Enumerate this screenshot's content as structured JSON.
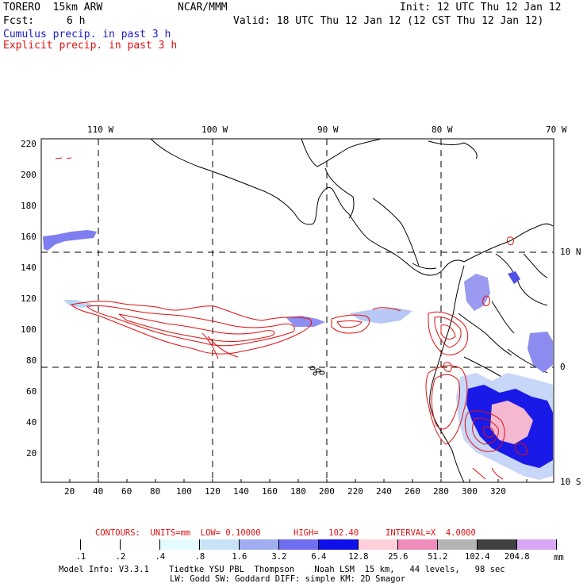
{
  "header": {
    "model": "TORERO  15km ARW",
    "org": "NCAR/MMM",
    "init": "Init: 12 UTC Thu 12 Jan 12",
    "fcst_label": "Fcst:",
    "fcst_value": "6 h",
    "valid": "Valid: 18 UTC Thu 12 Jan 12 (12 CST Thu 12 Jan 12)",
    "legend_cumulus": "Cumulus precip. in past 3 h",
    "legend_explicit": "Explicit precip. in past 3 h"
  },
  "axes": {
    "top_lon": [
      "110 W",
      "100 W",
      "90 W",
      "80 W",
      "70 W"
    ],
    "right_lat": [
      "10 N",
      "0",
      "10 S"
    ],
    "y_ticks": [
      "220",
      "200",
      "180",
      "160",
      "140",
      "120",
      "100",
      "80",
      "60",
      "40",
      "20"
    ],
    "x_ticks": [
      "20",
      "40",
      "60",
      "80",
      "100",
      "120",
      "140",
      "160",
      "180",
      "200",
      "220",
      "240",
      "260",
      "280",
      "300",
      "320"
    ]
  },
  "contours_line": {
    "label": "CONTOURS:  UNITS=mm  LOW= 0.10000",
    "high": "HIGH=  102.40",
    "interval": "INTERVAL=X  4.0000"
  },
  "colorbar": {
    "values": [
      ".1",
      ".2",
      ".4",
      ".8",
      "1.6",
      "3.2",
      "6.4",
      "12.8",
      "25.6",
      "51.2",
      "102.4",
      "204.8"
    ],
    "unit": "mm",
    "colors": [
      "#ffffff",
      "#ffffff",
      "#ffffff",
      "#e6fbff",
      "#c8e3f7",
      "#a0aef0",
      "#6f6ff0",
      "#1010e8",
      "#ffd0dc",
      "#f08cbc",
      "#b4b4b4",
      "#404040",
      "#d8a8f4"
    ]
  },
  "footer": {
    "line1": "Model Info: V3.3.1    Tiedtke YSU PBL  Thompson    Noah LSM  15 km,   44 levels,   98 sec",
    "line2": "LW: Godd SW: Goddard DIFF: simple KM: 2D Smagor"
  }
}
